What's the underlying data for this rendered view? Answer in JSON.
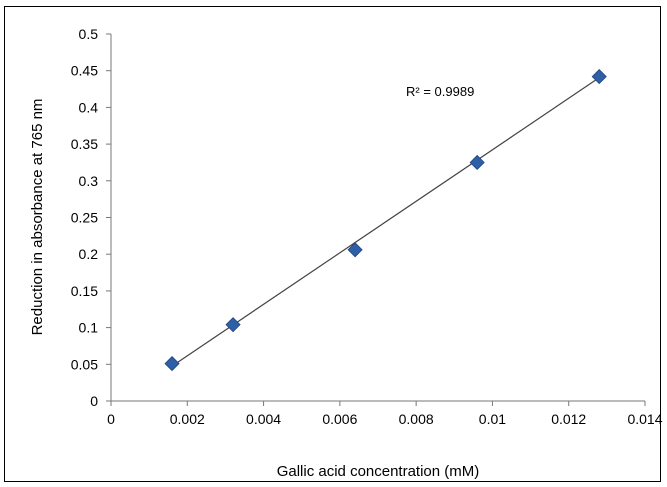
{
  "chart_data": {
    "type": "scatter",
    "title": "",
    "xlabel": "Gallic acid concentration (mM)",
    "ylabel": "Reduction in absorbance at 765 nm",
    "xlim": [
      0,
      0.014
    ],
    "ylim": [
      0,
      0.5
    ],
    "x_ticks": [
      "0",
      "0.002",
      "0.004",
      "0.006",
      "0.008",
      "0.01",
      "0.012",
      "0.014"
    ],
    "y_ticks": [
      "0",
      "0.05",
      "0.1",
      "0.15",
      "0.2",
      "0.25",
      "0.3",
      "0.35",
      "0.4",
      "0.45",
      "0.5"
    ],
    "points": [
      {
        "x": 0.0016,
        "y": 0.051
      },
      {
        "x": 0.0032,
        "y": 0.104
      },
      {
        "x": 0.0064,
        "y": 0.206
      },
      {
        "x": 0.0096,
        "y": 0.325
      },
      {
        "x": 0.0128,
        "y": 0.442
      }
    ],
    "trendline": {
      "type": "linear",
      "x": [
        0.0016,
        0.0128
      ],
      "y": [
        0.0475,
        0.4405
      ]
    },
    "annotation": {
      "r2_text": "R² = 0.9989"
    },
    "grid": false,
    "marker_color": "#2f5fa7",
    "line_color": "#444444"
  }
}
